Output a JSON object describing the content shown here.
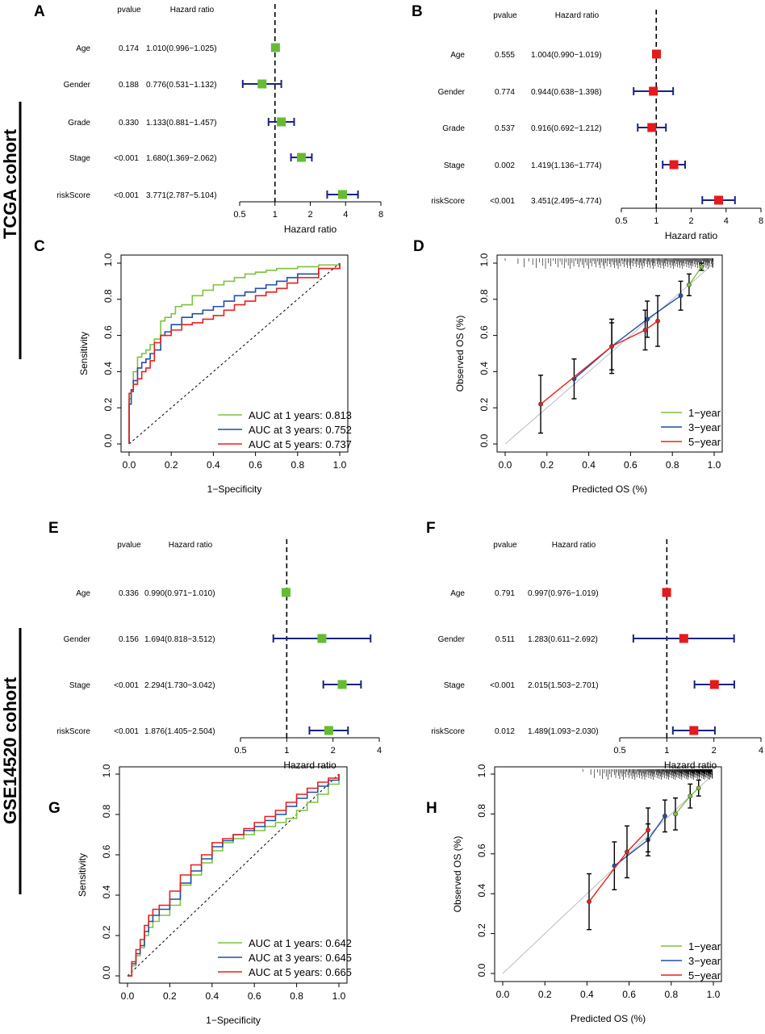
{
  "cohorts": {
    "tcga": "TCGA cohort",
    "gse": "GSE14520 cohort"
  },
  "colors": {
    "green": "#66BB33",
    "red": "#E41A1C",
    "navy": "#1A237E",
    "roc_green": "#7CC242",
    "roc_blue": "#1F4FA8",
    "roc_red": "#E8201F",
    "grey": "#BBBBBB"
  },
  "forest": [
    {
      "panel": "A",
      "color": "green",
      "header": {
        "pvalue": "pvalue",
        "hr": "Hazard ratio"
      },
      "xlabel": "Hazard ratio",
      "ticks": [
        "0.5",
        "1",
        "2",
        "4",
        "8"
      ],
      "range": [
        0.5,
        8
      ],
      "rows": [
        {
          "label": "Age",
          "p": "0.174",
          "text": "1.010(0.996−1.025)",
          "hr": 1.01,
          "lo": 0.996,
          "hi": 1.025
        },
        {
          "label": "Gender",
          "p": "0.188",
          "text": "0.776(0.531−1.132)",
          "hr": 0.776,
          "lo": 0.531,
          "hi": 1.132
        },
        {
          "label": "Grade",
          "p": "0.330",
          "text": "1.133(0.881−1.457)",
          "hr": 1.133,
          "lo": 0.881,
          "hi": 1.457
        },
        {
          "label": "Stage",
          "p": "<0.001",
          "text": "1.680(1.369−2.062)",
          "hr": 1.68,
          "lo": 1.369,
          "hi": 2.062
        },
        {
          "label": "riskScore",
          "p": "<0.001",
          "text": "3.771(2.787−5.104)",
          "hr": 3.771,
          "lo": 2.787,
          "hi": 5.104
        }
      ]
    },
    {
      "panel": "B",
      "color": "red",
      "header": {
        "pvalue": "pvalue",
        "hr": "Hazard ratio"
      },
      "xlabel": "Hazard ratio",
      "ticks": [
        "0.5",
        "1",
        "2",
        "4",
        "8"
      ],
      "range": [
        0.5,
        8
      ],
      "rows": [
        {
          "label": "Age",
          "p": "0.555",
          "text": "1.004(0.990−1.019)",
          "hr": 1.004,
          "lo": 0.99,
          "hi": 1.019
        },
        {
          "label": "Gender",
          "p": "0.774",
          "text": "0.944(0.638−1.398)",
          "hr": 0.944,
          "lo": 0.638,
          "hi": 1.398
        },
        {
          "label": "Grade",
          "p": "0.537",
          "text": "0.916(0.692−1.212)",
          "hr": 0.916,
          "lo": 0.692,
          "hi": 1.212
        },
        {
          "label": "Stage",
          "p": "0.002",
          "text": "1.419(1.136−1.774)",
          "hr": 1.419,
          "lo": 1.136,
          "hi": 1.774
        },
        {
          "label": "riskScore",
          "p": "<0.001",
          "text": "3.451(2.495−4.774)",
          "hr": 3.451,
          "lo": 2.495,
          "hi": 4.774
        }
      ]
    },
    {
      "panel": "E",
      "color": "green",
      "header": {
        "pvalue": "pvalue",
        "hr": "Hazard ratio"
      },
      "xlabel": "Hazard ratio",
      "ticks": [
        "0.5",
        "1",
        "2",
        "4"
      ],
      "range": [
        0.5,
        4
      ],
      "rows": [
        {
          "label": "Age",
          "p": "0.336",
          "text": "0.990(0.971−1.010)",
          "hr": 0.99,
          "lo": 0.971,
          "hi": 1.01
        },
        {
          "label": "Gender",
          "p": "0.156",
          "text": "1.694(0.818−3.512)",
          "hr": 1.694,
          "lo": 0.818,
          "hi": 3.512
        },
        {
          "label": "Stage",
          "p": "<0.001",
          "text": "2.294(1.730−3.042)",
          "hr": 2.294,
          "lo": 1.73,
          "hi": 3.042
        },
        {
          "label": "riskScore",
          "p": "<0.001",
          "text": "1.876(1.405−2.504)",
          "hr": 1.876,
          "lo": 1.405,
          "hi": 2.504
        }
      ]
    },
    {
      "panel": "F",
      "color": "red",
      "header": {
        "pvalue": "pvalue",
        "hr": "Hazard ratio"
      },
      "xlabel": "Hazard ratio",
      "ticks": [
        "0.5",
        "1",
        "2",
        "4"
      ],
      "range": [
        0.5,
        4
      ],
      "rows": [
        {
          "label": "Age",
          "p": "0.791",
          "text": "0.997(0.976−1.019)",
          "hr": 0.997,
          "lo": 0.976,
          "hi": 1.019
        },
        {
          "label": "Gender",
          "p": "0.511",
          "text": "1.283(0.611−2.692)",
          "hr": 1.283,
          "lo": 0.611,
          "hi": 2.692
        },
        {
          "label": "Stage",
          "p": "<0.001",
          "text": "2.015(1.503−2.701)",
          "hr": 2.015,
          "lo": 1.503,
          "hi": 2.701
        },
        {
          "label": "riskScore",
          "p": "0.012",
          "text": "1.489(1.093−2.030)",
          "hr": 1.489,
          "lo": 1.093,
          "hi": 2.03
        }
      ]
    }
  ],
  "roc": [
    {
      "panel": "C",
      "xlabel": "1−Specificity",
      "ylabel": "Sensitivity",
      "ticks": [
        "0.0",
        "0.2",
        "0.4",
        "0.6",
        "0.8",
        "1.0"
      ],
      "series": [
        {
          "name": "AUC at 1 years: 0.813",
          "color": "roc_green",
          "x": [
            0,
            0,
            0.01,
            0.02,
            0.04,
            0.06,
            0.08,
            0.1,
            0.12,
            0.15,
            0.17,
            0.2,
            0.22,
            0.25,
            0.3,
            0.35,
            0.4,
            0.45,
            0.5,
            0.55,
            0.6,
            0.65,
            0.7,
            0.8,
            0.9,
            1.0
          ],
          "y": [
            0,
            0.25,
            0.3,
            0.4,
            0.48,
            0.5,
            0.52,
            0.55,
            0.58,
            0.68,
            0.7,
            0.72,
            0.76,
            0.77,
            0.82,
            0.85,
            0.88,
            0.9,
            0.92,
            0.94,
            0.95,
            0.96,
            0.97,
            0.98,
            0.99,
            1.0
          ]
        },
        {
          "name": "AUC at 3 years: 0.752",
          "color": "roc_blue",
          "x": [
            0,
            0,
            0.01,
            0.02,
            0.04,
            0.06,
            0.08,
            0.1,
            0.12,
            0.15,
            0.17,
            0.2,
            0.25,
            0.3,
            0.35,
            0.4,
            0.45,
            0.5,
            0.55,
            0.6,
            0.65,
            0.7,
            0.75,
            0.8,
            0.9,
            1.0
          ],
          "y": [
            0,
            0.22,
            0.3,
            0.35,
            0.42,
            0.45,
            0.47,
            0.5,
            0.52,
            0.6,
            0.62,
            0.66,
            0.7,
            0.72,
            0.74,
            0.76,
            0.79,
            0.82,
            0.84,
            0.86,
            0.88,
            0.9,
            0.92,
            0.94,
            0.97,
            1.0
          ]
        },
        {
          "name": "AUC at 5 years: 0.737",
          "color": "roc_red",
          "x": [
            0,
            0,
            0.01,
            0.02,
            0.04,
            0.06,
            0.08,
            0.1,
            0.12,
            0.15,
            0.2,
            0.25,
            0.3,
            0.35,
            0.4,
            0.45,
            0.5,
            0.55,
            0.6,
            0.65,
            0.7,
            0.75,
            0.8,
            0.9,
            1.0
          ],
          "y": [
            0,
            0.28,
            0.29,
            0.33,
            0.36,
            0.4,
            0.42,
            0.46,
            0.56,
            0.6,
            0.63,
            0.66,
            0.67,
            0.69,
            0.71,
            0.74,
            0.77,
            0.79,
            0.82,
            0.84,
            0.86,
            0.89,
            0.92,
            0.97,
            1.0
          ]
        }
      ]
    },
    {
      "panel": "G",
      "xlabel": "1−Specificity",
      "ylabel": "Sensitivity",
      "ticks": [
        "0.0",
        "0.2",
        "0.4",
        "0.6",
        "0.8",
        "1.0"
      ],
      "series": [
        {
          "name": "AUC at 1 years: 0.642",
          "color": "roc_green",
          "x": [
            0,
            0.02,
            0.04,
            0.06,
            0.08,
            0.1,
            0.12,
            0.15,
            0.2,
            0.25,
            0.3,
            0.35,
            0.4,
            0.45,
            0.5,
            0.55,
            0.6,
            0.65,
            0.7,
            0.75,
            0.8,
            0.85,
            0.9,
            0.95,
            1.0
          ],
          "y": [
            0,
            0.05,
            0.1,
            0.14,
            0.2,
            0.24,
            0.27,
            0.3,
            0.35,
            0.45,
            0.5,
            0.56,
            0.62,
            0.66,
            0.68,
            0.7,
            0.72,
            0.74,
            0.76,
            0.78,
            0.82,
            0.86,
            0.9,
            0.95,
            1.0
          ]
        },
        {
          "name": "AUC at 3 years: 0.645",
          "color": "roc_blue",
          "x": [
            0,
            0.02,
            0.04,
            0.06,
            0.08,
            0.1,
            0.12,
            0.15,
            0.2,
            0.25,
            0.3,
            0.35,
            0.4,
            0.45,
            0.5,
            0.55,
            0.6,
            0.65,
            0.7,
            0.75,
            0.8,
            0.85,
            0.9,
            0.95,
            1.0
          ],
          "y": [
            0,
            0.06,
            0.11,
            0.15,
            0.22,
            0.27,
            0.3,
            0.33,
            0.38,
            0.46,
            0.52,
            0.58,
            0.64,
            0.67,
            0.7,
            0.72,
            0.74,
            0.77,
            0.8,
            0.84,
            0.88,
            0.91,
            0.94,
            0.97,
            1.0
          ]
        },
        {
          "name": "AUC at 5 years: 0.665",
          "color": "roc_red",
          "x": [
            0,
            0.02,
            0.04,
            0.06,
            0.08,
            0.1,
            0.12,
            0.15,
            0.2,
            0.25,
            0.3,
            0.35,
            0.4,
            0.45,
            0.5,
            0.55,
            0.6,
            0.65,
            0.7,
            0.75,
            0.8,
            0.85,
            0.9,
            0.95,
            1.0
          ],
          "y": [
            0,
            0.07,
            0.13,
            0.18,
            0.25,
            0.3,
            0.33,
            0.35,
            0.42,
            0.5,
            0.55,
            0.6,
            0.66,
            0.68,
            0.7,
            0.73,
            0.76,
            0.79,
            0.82,
            0.86,
            0.9,
            0.93,
            0.96,
            0.98,
            1.0
          ]
        }
      ]
    }
  ],
  "calibration": [
    {
      "panel": "D",
      "xlabel": "Predicted OS (%)",
      "ylabel": "Observed OS (%)",
      "ticks": [
        "0.0",
        "0.2",
        "0.4",
        "0.6",
        "0.8",
        "1.0"
      ],
      "series": [
        {
          "name": "1−year",
          "color": "roc_green",
          "x": [
            0.88,
            0.94
          ],
          "y": [
            0.88,
            0.98
          ],
          "err": [
            0.06,
            0.02
          ]
        },
        {
          "name": "3−year",
          "color": "roc_blue",
          "x": [
            0.33,
            0.51,
            0.68,
            0.84
          ],
          "y": [
            0.36,
            0.54,
            0.69,
            0.82
          ],
          "err": [
            0.11,
            0.13,
            0.1,
            0.08
          ]
        },
        {
          "name": "5−year",
          "color": "roc_red",
          "x": [
            0.17,
            0.51,
            0.67,
            0.73
          ],
          "y": [
            0.22,
            0.54,
            0.63,
            0.68
          ],
          "err": [
            0.16,
            0.15,
            0.11,
            0.14
          ]
        }
      ]
    },
    {
      "panel": "H",
      "xlabel": "Predicted OS (%)",
      "ylabel": "Observed OS (%)",
      "ticks": [
        "0.0",
        "0.2",
        "0.4",
        "0.6",
        "0.8",
        "1.0"
      ],
      "series": [
        {
          "name": "1−year",
          "color": "roc_green",
          "x": [
            0.82,
            0.89,
            0.93
          ],
          "y": [
            0.8,
            0.89,
            0.93
          ],
          "err": [
            0.08,
            0.06,
            0.04
          ]
        },
        {
          "name": "3−year",
          "color": "roc_blue",
          "x": [
            0.53,
            0.69,
            0.77
          ],
          "y": [
            0.54,
            0.67,
            0.79
          ],
          "err": [
            0.12,
            0.08,
            0.08
          ]
        },
        {
          "name": "5−year",
          "color": "roc_red",
          "x": [
            0.41,
            0.59,
            0.69
          ],
          "y": [
            0.36,
            0.61,
            0.72
          ],
          "err": [
            0.14,
            0.13,
            0.11
          ]
        }
      ]
    }
  ]
}
